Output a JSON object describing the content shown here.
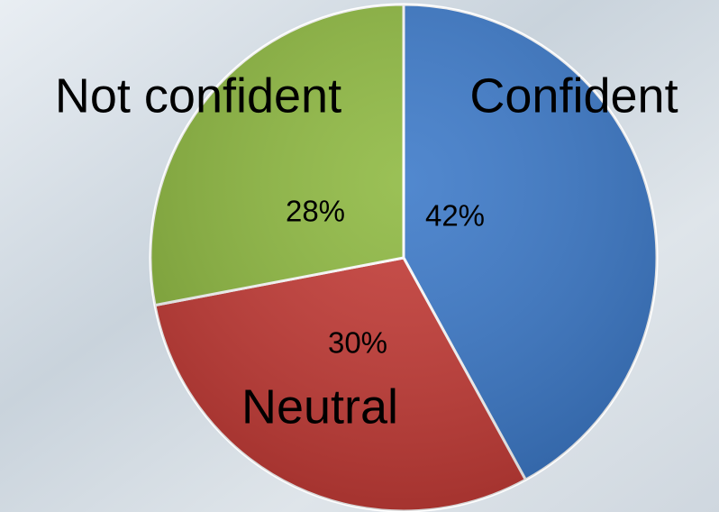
{
  "chart_data": {
    "type": "pie",
    "categories": [
      "Confident",
      "Neutral",
      "Not confident"
    ],
    "values": [
      42,
      30,
      28
    ],
    "value_labels": [
      "42%",
      "30%",
      "28%"
    ],
    "colors": [
      "#3a78c8",
      "#c43a35",
      "#8db83f"
    ]
  }
}
